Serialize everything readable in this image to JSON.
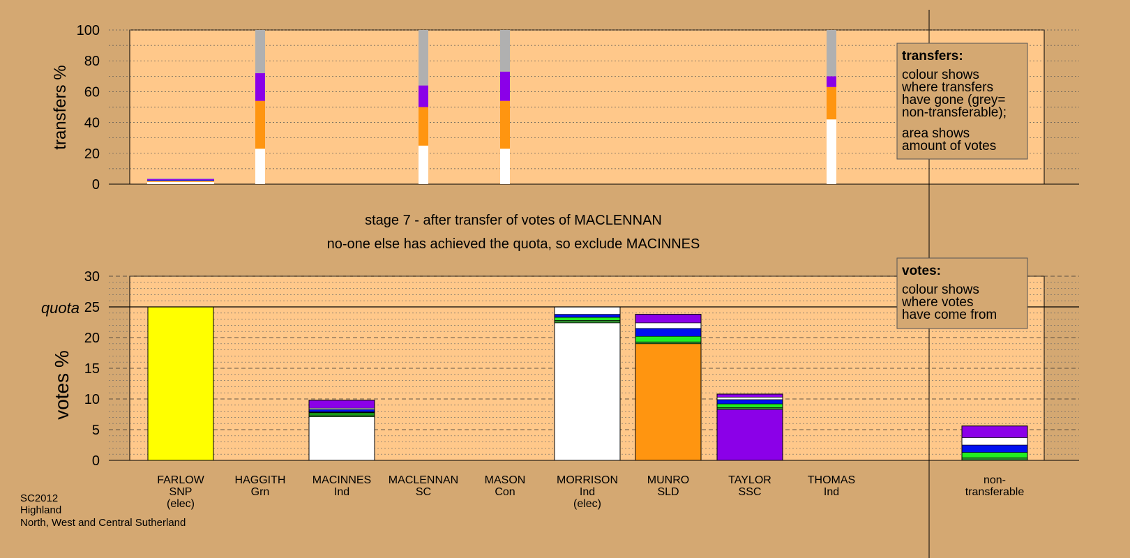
{
  "colors": {
    "background": "#d4a872",
    "plot": "#ffc88a",
    "white": "#ffffff",
    "grey": "#b0b0b0",
    "orange": "#ff9510",
    "purple": "#8b00e8",
    "yellow": "#ffff00",
    "green": "#22ee22",
    "blue": "#0010f0",
    "darkgreen": "#2d8a2d",
    "black": "#000000"
  },
  "footer": {
    "line1": "SC2012",
    "line2": "Highland",
    "line3": "North, West and Central Sutherland"
  },
  "stage": {
    "line1": "stage 7 - after transfer of votes of MACLENNAN",
    "line2": "no-one else has achieved the quota, so exclude MACINNES"
  },
  "legend_transfers": {
    "title": "transfers:",
    "line1": "colour shows",
    "line2": "where transfers",
    "line3": "have gone (grey=",
    "line4": "non-transferable);",
    "line5": "area shows",
    "line6": "amount of votes"
  },
  "legend_votes": {
    "title": "votes:",
    "line1": "colour shows",
    "line2": "where votes",
    "line3": "have come from"
  },
  "quota_label": "quota",
  "chart_data": [
    {
      "type": "bar",
      "name": "transfers",
      "ylabel": "transfers %",
      "ylim": [
        0,
        100
      ],
      "yticks": [
        0,
        20,
        40,
        60,
        80,
        100
      ],
      "categories": [
        "FARLOW",
        "HAGGITH",
        "MACINNES",
        "MACLENNAN",
        "MASON",
        "MORRISON",
        "MUNRO",
        "TAYLOR",
        "THOMAS"
      ],
      "bars": [
        {
          "category": "FARLOW",
          "wide": true,
          "segments": [
            {
              "color": "white",
              "from": 0,
              "to": 1.5
            },
            {
              "color": "orange",
              "from": 1.5,
              "to": 2.2
            },
            {
              "color": "blue",
              "from": 2.2,
              "to": 2.7
            },
            {
              "color": "purple",
              "from": 2.7,
              "to": 3.3
            },
            {
              "color": "grey",
              "from": 3.3,
              "to": 3.8
            }
          ]
        },
        {
          "category": "HAGGITH",
          "segments": [
            {
              "color": "white",
              "from": 0,
              "to": 23
            },
            {
              "color": "orange",
              "from": 23,
              "to": 54
            },
            {
              "color": "purple",
              "from": 54,
              "to": 72
            },
            {
              "color": "grey",
              "from": 72,
              "to": 100
            }
          ]
        },
        {
          "category": "MACLENNAN",
          "segments": [
            {
              "color": "white",
              "from": 0,
              "to": 25
            },
            {
              "color": "orange",
              "from": 25,
              "to": 50
            },
            {
              "color": "purple",
              "from": 50,
              "to": 64
            },
            {
              "color": "grey",
              "from": 64,
              "to": 100
            }
          ]
        },
        {
          "category": "MASON",
          "segments": [
            {
              "color": "white",
              "from": 0,
              "to": 23
            },
            {
              "color": "orange",
              "from": 23,
              "to": 54
            },
            {
              "color": "purple",
              "from": 54,
              "to": 73
            },
            {
              "color": "grey",
              "from": 73,
              "to": 100
            }
          ]
        },
        {
          "category": "THOMAS",
          "segments": [
            {
              "color": "white",
              "from": 0,
              "to": 42
            },
            {
              "color": "orange",
              "from": 42,
              "to": 63
            },
            {
              "color": "purple",
              "from": 63,
              "to": 70
            },
            {
              "color": "grey",
              "from": 70,
              "to": 100
            }
          ]
        }
      ]
    },
    {
      "type": "bar",
      "name": "votes",
      "ylabel": "votes %",
      "ylim": [
        0,
        30
      ],
      "yticks": [
        0,
        5,
        10,
        15,
        20,
        25,
        30
      ],
      "quota": 25,
      "categories": [
        {
          "name": "FARLOW",
          "party": "SNP",
          "note": "(elec)"
        },
        {
          "name": "HAGGITH",
          "party": "Grn",
          "note": ""
        },
        {
          "name": "MACINNES",
          "party": "Ind",
          "note": ""
        },
        {
          "name": "MACLENNAN",
          "party": "SC",
          "note": ""
        },
        {
          "name": "MASON",
          "party": "Con",
          "note": ""
        },
        {
          "name": "MORRISON",
          "party": "Ind",
          "note": "(elec)"
        },
        {
          "name": "MUNRO",
          "party": "SLD",
          "note": ""
        },
        {
          "name": "TAYLOR",
          "party": "SSC",
          "note": ""
        },
        {
          "name": "THOMAS",
          "party": "Ind",
          "note": ""
        },
        {
          "name": "",
          "party": "",
          "note": ""
        },
        {
          "name": "non-",
          "party": "transferable",
          "note": ""
        }
      ],
      "bars": [
        {
          "category": "FARLOW",
          "segments": [
            {
              "color": "yellow",
              "from": 0,
              "to": 25.0
            }
          ]
        },
        {
          "category": "MACINNES",
          "segments": [
            {
              "color": "white",
              "from": 0,
              "to": 7.1
            },
            {
              "color": "darkgreen",
              "from": 7.1,
              "to": 7.4
            },
            {
              "color": "green",
              "from": 7.4,
              "to": 7.7
            },
            {
              "color": "black",
              "from": 7.7,
              "to": 7.9
            },
            {
              "color": "blue",
              "from": 7.9,
              "to": 8.3
            },
            {
              "color": "white",
              "from": 8.3,
              "to": 8.5
            },
            {
              "color": "purple",
              "from": 8.5,
              "to": 9.8
            }
          ]
        },
        {
          "category": "MORRISON",
          "segments": [
            {
              "color": "white",
              "from": 0,
              "to": 22.4
            },
            {
              "color": "darkgreen",
              "from": 22.4,
              "to": 22.8
            },
            {
              "color": "green",
              "from": 22.8,
              "to": 23.3
            },
            {
              "color": "blue",
              "from": 23.3,
              "to": 23.8
            },
            {
              "color": "white",
              "from": 23.8,
              "to": 25.0
            }
          ]
        },
        {
          "category": "MUNRO",
          "segments": [
            {
              "color": "orange",
              "from": 0,
              "to": 19.0
            },
            {
              "color": "darkgreen",
              "from": 19.0,
              "to": 19.3
            },
            {
              "color": "green",
              "from": 19.3,
              "to": 20.2
            },
            {
              "color": "blue",
              "from": 20.2,
              "to": 21.5
            },
            {
              "color": "white",
              "from": 21.5,
              "to": 22.4
            },
            {
              "color": "purple",
              "from": 22.4,
              "to": 23.8
            }
          ]
        },
        {
          "category": "TAYLOR",
          "segments": [
            {
              "color": "purple",
              "from": 0,
              "to": 8.3
            },
            {
              "color": "darkgreen",
              "from": 8.3,
              "to": 8.6
            },
            {
              "color": "green",
              "from": 8.6,
              "to": 9.2
            },
            {
              "color": "blue",
              "from": 9.2,
              "to": 9.9
            },
            {
              "color": "white",
              "from": 9.9,
              "to": 10.3
            },
            {
              "color": "purple",
              "from": 10.3,
              "to": 10.8
            }
          ]
        },
        {
          "category": "non-transferable",
          "segments": [
            {
              "color": "darkgreen",
              "from": 0,
              "to": 0.4
            },
            {
              "color": "green",
              "from": 0.4,
              "to": 1.3
            },
            {
              "color": "blue",
              "from": 1.3,
              "to": 2.5
            },
            {
              "color": "white",
              "from": 2.5,
              "to": 3.7
            },
            {
              "color": "purple",
              "from": 3.7,
              "to": 5.6
            }
          ]
        }
      ]
    }
  ]
}
